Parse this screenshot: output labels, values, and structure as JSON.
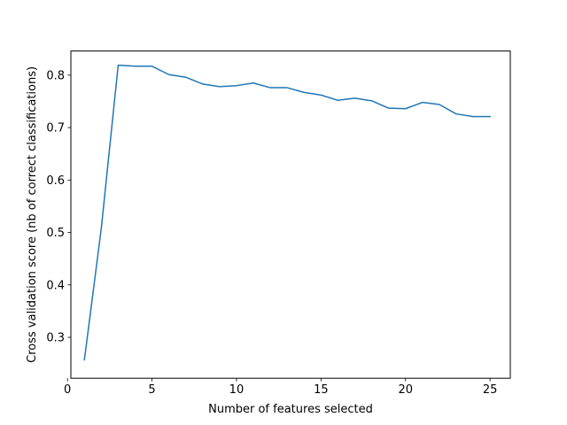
{
  "chart_data": {
    "type": "line",
    "title": "",
    "xlabel": "Number of features selected",
    "ylabel": "Cross validation score (nb of correct classifications)",
    "xlim": [
      0.2,
      26.2
    ],
    "ylim": [
      0.222,
      0.846
    ],
    "x_ticks": [
      0,
      5,
      10,
      15,
      20,
      25
    ],
    "y_ticks": [
      0.3,
      0.4,
      0.5,
      0.6,
      0.7,
      0.8
    ],
    "x_tick_labels": [
      "0",
      "5",
      "10",
      "15",
      "20",
      "25"
    ],
    "y_tick_labels": [
      "0.3",
      "0.4",
      "0.5",
      "0.6",
      "0.7",
      "0.8"
    ],
    "grid": false,
    "series": [
      {
        "color": "#1f77b4",
        "x": [
          1,
          2,
          3,
          4,
          5,
          6,
          7,
          8,
          9,
          10,
          11,
          12,
          13,
          14,
          15,
          16,
          17,
          18,
          19,
          20,
          21,
          22,
          23,
          24,
          25
        ],
        "values": [
          0.257,
          0.508,
          0.819,
          0.817,
          0.817,
          0.801,
          0.796,
          0.783,
          0.778,
          0.78,
          0.785,
          0.776,
          0.776,
          0.767,
          0.762,
          0.752,
          0.756,
          0.751,
          0.737,
          0.736,
          0.748,
          0.744,
          0.726,
          0.721,
          0.721
        ]
      }
    ]
  }
}
